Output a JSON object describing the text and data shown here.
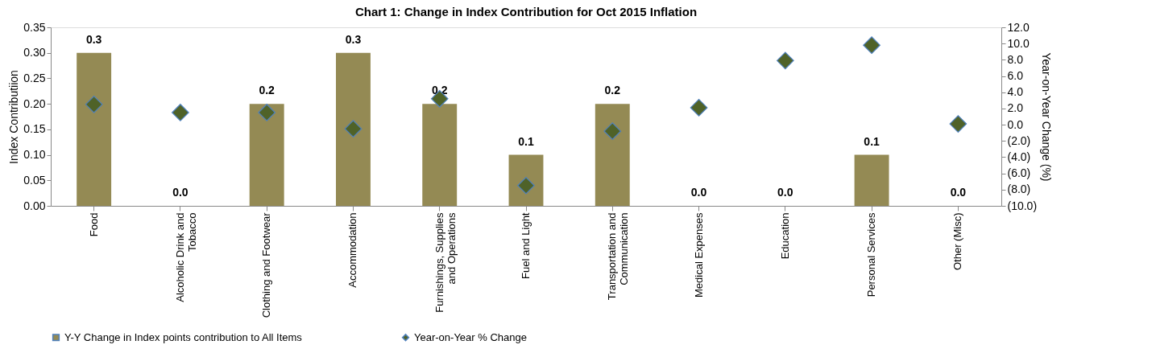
{
  "chart_data": {
    "type": "bar",
    "title": "Chart 1: Change in Index Contribution for Oct 2015 Inflation",
    "ylabel": "Index Contributiion",
    "y2label": "Year-on-Year Change (%)",
    "categories": [
      "Food",
      "Alcoholic Drink and\nTobacco",
      "Clothing and Footwear",
      "Accommodation",
      "Furnishings, Supplies\nand Operations",
      "Fuel and Light",
      "Transportation and\nCommunication",
      "Medical Expenses",
      "Education",
      "Personal Services",
      "Other (Misc)"
    ],
    "series": [
      {
        "name": "Y-Y Change in Index points contribution to All Items",
        "color": "#948a54",
        "values": [
          0.3,
          0.0,
          0.2,
          0.3,
          0.2,
          0.1,
          0.2,
          0.0,
          0.0,
          0.1,
          0.0
        ],
        "value_labels": [
          "0.3",
          "0.0",
          "0.2",
          "0.3",
          "0.2",
          "0.1",
          "0.2",
          "0.0",
          "0.0",
          "0.1",
          "0.0"
        ]
      },
      {
        "name": "Year-on-Year % Change",
        "type": "scatter",
        "axis": "y2",
        "marker": "diamond",
        "color": "#4f6228",
        "values": [
          2.5,
          1.5,
          1.5,
          -0.5,
          3.2,
          -7.5,
          -0.8,
          2.1,
          7.9,
          9.8,
          0.1
        ]
      }
    ],
    "ylim": [
      0,
      0.35
    ],
    "yticks": [
      {
        "value": 0,
        "label": "0.00"
      },
      {
        "value": 0.05,
        "label": "0.05"
      },
      {
        "value": 0.1,
        "label": "0.10"
      },
      {
        "value": 0.15,
        "label": "0.15"
      },
      {
        "value": 0.2,
        "label": "0.20"
      },
      {
        "value": 0.25,
        "label": "0.25"
      },
      {
        "value": 0.3,
        "label": "0.30"
      },
      {
        "value": 0.35,
        "label": "0.35"
      }
    ],
    "y2lim": [
      -10,
      12
    ],
    "y2ticks": [
      {
        "value": -10,
        "label": "(10.0)"
      },
      {
        "value": -8,
        "label": "(8.0)"
      },
      {
        "value": -6,
        "label": "(6.0)"
      },
      {
        "value": -4,
        "label": "(4.0)"
      },
      {
        "value": -2,
        "label": "(2.0)"
      },
      {
        "value": 0,
        "label": "0.0"
      },
      {
        "value": 2,
        "label": "2.0"
      },
      {
        "value": 4,
        "label": "4.0"
      },
      {
        "value": 6,
        "label": "6.0"
      },
      {
        "value": 8,
        "label": "8.0"
      },
      {
        "value": 10,
        "label": "10.0"
      },
      {
        "value": 12,
        "label": "12.0"
      }
    ],
    "grid": false,
    "legend": "bottom"
  }
}
